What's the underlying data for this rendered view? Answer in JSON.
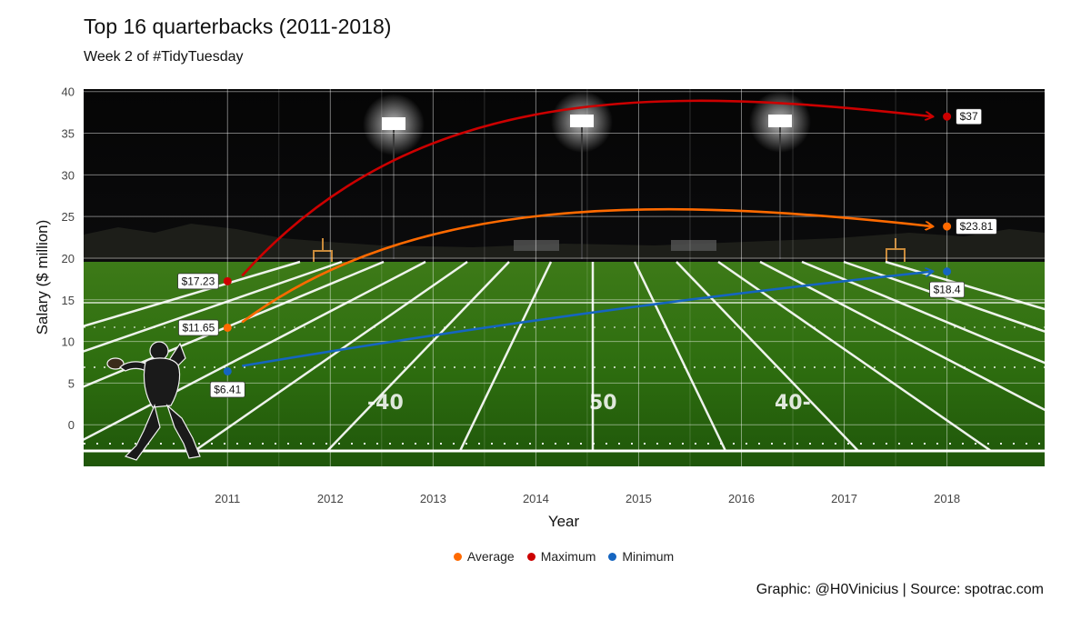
{
  "title": "Top 16 quarterbacks (2011-2018)",
  "subtitle": "Week 2 of #TidyTuesday",
  "caption": "Graphic: @H0Vinicius | Source: spotrac.com",
  "colors": {
    "Average": "#ff6a00",
    "Maximum": "#cc0000",
    "Minimum": "#1565c0"
  },
  "chart_data": {
    "type": "scatter",
    "title": "Top 16 quarterbacks (2011-2018)",
    "subtitle": "Week 2 of #TidyTuesday",
    "xlabel": "Year",
    "ylabel": "Salary ($ million)",
    "x_ticks": [
      2011,
      2012,
      2013,
      2014,
      2015,
      2016,
      2017,
      2018
    ],
    "y_ticks": [
      0,
      5,
      10,
      15,
      20,
      25,
      30,
      35,
      40
    ],
    "xlim": [
      2009.6,
      2018.95
    ],
    "ylim": [
      -5,
      40.3
    ],
    "grid": true,
    "legend_position": "bottom",
    "series": [
      {
        "name": "Average",
        "x": [
          2011,
          2018
        ],
        "y": [
          11.65,
          23.81
        ],
        "labels": [
          "$11.65",
          "$23.81"
        ],
        "arrow_peak_y": 25.5
      },
      {
        "name": "Maximum",
        "x": [
          2011,
          2018
        ],
        "y": [
          17.23,
          37
        ],
        "labels": [
          "$17.23",
          "$37"
        ],
        "arrow_peak_y": 38.8
      },
      {
        "name": "Minimum",
        "x": [
          2011,
          2018
        ],
        "y": [
          6.41,
          18.4
        ],
        "labels": [
          "$6.41",
          "$18.4"
        ],
        "arrow_peak_y": 18.4
      }
    ]
  }
}
